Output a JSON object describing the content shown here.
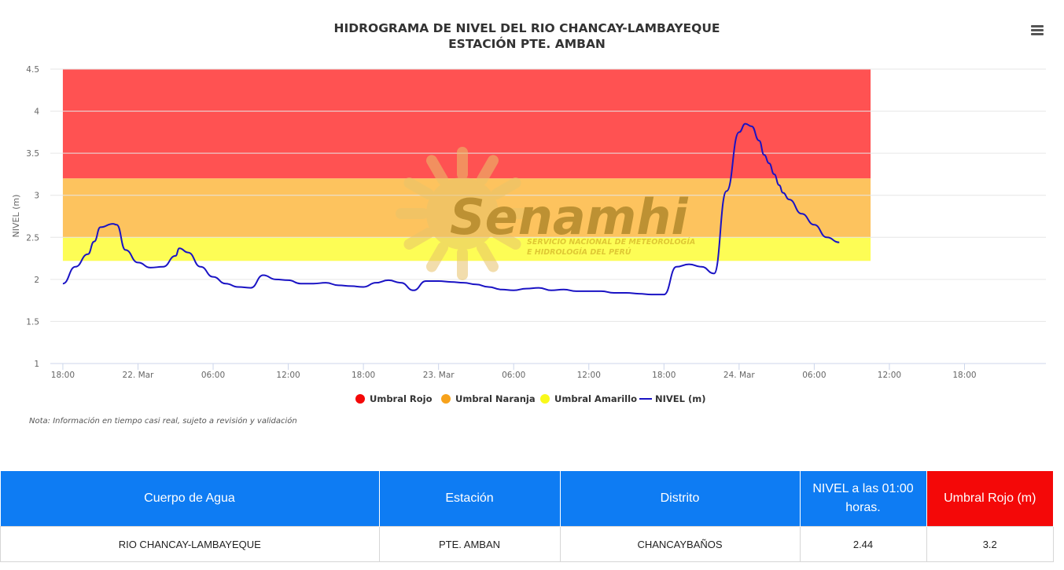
{
  "chart_data": {
    "type": "line",
    "title": "HIDROGRAMA DE NIVEL DEL RIO CHANCAY-LAMBAYEQUE",
    "subtitle": "ESTACIÓN PTE. AMBAN",
    "ylabel": "NIVEL (m)",
    "ylim": [
      1,
      4.5
    ],
    "y_ticks": [
      "1",
      "1.5",
      "2",
      "2.5",
      "3",
      "3.5",
      "4",
      "4.5"
    ],
    "x_ticks": [
      "18:00",
      "22. Mar",
      "06:00",
      "12:00",
      "18:00",
      "23. Mar",
      "06:00",
      "12:00",
      "18:00",
      "24. Mar",
      "06:00",
      "12:00",
      "18:00"
    ],
    "x_range_hours": [
      -1,
      78.5
    ],
    "bands": [
      {
        "name": "Umbral Rojo",
        "from": 3.2,
        "to": 4.5,
        "color": "#ff5252"
      },
      {
        "name": "Umbral Naranja",
        "from": 2.5,
        "to": 3.2,
        "color": "#fdc35e"
      },
      {
        "name": "Umbral Amarillo",
        "from": 2.22,
        "to": 2.5,
        "color": "#fdfd55"
      }
    ],
    "series": [
      {
        "name": "NIVEL (m)",
        "color": "#1a13c4",
        "x_hours": [
          0,
          1,
          2,
          2.5,
          3,
          4,
          4.3,
          5,
          6,
          7,
          8,
          9,
          9.3,
          10,
          11,
          12,
          13,
          14,
          15,
          16,
          17,
          18,
          19,
          20,
          21,
          22,
          23,
          24,
          25,
          26,
          27,
          28,
          29,
          30,
          31,
          32,
          33,
          34,
          35,
          36,
          37,
          38,
          39,
          40,
          41,
          42,
          43,
          44,
          45,
          46,
          47,
          48,
          49,
          50,
          51,
          52,
          53,
          54,
          54.5,
          55,
          55.6,
          56,
          56.4,
          56.8,
          57.2,
          57.5,
          58,
          59,
          60,
          61,
          62
        ],
        "y": [
          1.95,
          2.15,
          2.3,
          2.45,
          2.62,
          2.66,
          2.65,
          2.35,
          2.2,
          2.14,
          2.15,
          2.28,
          2.37,
          2.32,
          2.15,
          2.03,
          1.95,
          1.91,
          1.9,
          2.05,
          2.0,
          1.99,
          1.95,
          1.95,
          1.96,
          1.93,
          1.92,
          1.91,
          1.96,
          1.99,
          1.96,
          1.87,
          1.98,
          1.98,
          1.97,
          1.96,
          1.94,
          1.91,
          1.88,
          1.87,
          1.89,
          1.9,
          1.87,
          1.88,
          1.86,
          1.86,
          1.86,
          1.84,
          1.84,
          1.83,
          1.82,
          1.82,
          2.15,
          2.18,
          2.15,
          2.07,
          3.05,
          3.75,
          3.85,
          3.82,
          3.65,
          3.48,
          3.38,
          3.25,
          3.12,
          3.03,
          2.95,
          2.78,
          2.65,
          2.5,
          2.44
        ]
      }
    ],
    "legend": [
      "Umbral Rojo",
      "Umbral Naranja",
      "Umbral Amarillo",
      "NIVEL (m)"
    ],
    "legend_position": "bottom-center",
    "grid": true
  },
  "watermark": {
    "brand": "Senamhi",
    "line1": "SERVICIO NACIONAL DE METEOROLOGÍA",
    "line2": "E HIDROLOGÍA DEL PERÚ"
  },
  "note": "Nota: Información en tiempo casi real, sujeto a revisión y validación",
  "menu_icon": "hamburger-menu-icon",
  "table": {
    "headers": [
      "Cuerpo de Agua",
      "Estación",
      "Distrito",
      "NIVEL a las 01:00 horas.",
      "Umbral Rojo (m)"
    ],
    "row": [
      "RIO CHANCAY-LAMBAYEQUE",
      "PTE. AMBAN",
      "CHANCAYBAÑOS",
      "2.44",
      "3.2"
    ],
    "header_color": "#0e7cf3",
    "alert_header_color": "#f40808"
  }
}
